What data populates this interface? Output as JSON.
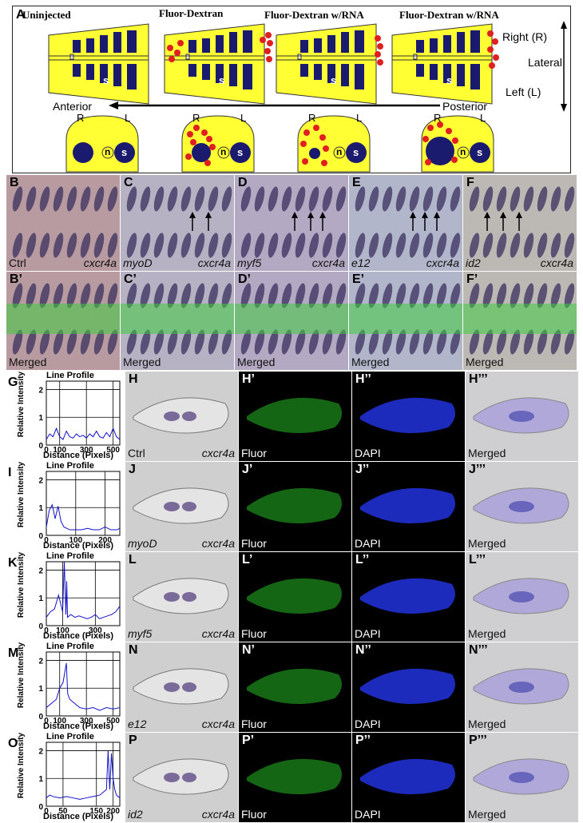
{
  "panel_a": {
    "letter": "A",
    "column_titles": [
      "Uninjected",
      "Fluor-Dextran",
      "Fluor-Dextran w/RNA",
      "Fluor-Dextran w/RNA"
    ],
    "right_label": "Right (R)",
    "lateral_label": "Lateral",
    "left_label": "Left (L)",
    "anterior_label": "Anterior",
    "posterior_label": "Posterior",
    "somite_letter": "s",
    "notochord_letter": "n",
    "r_letter": "R",
    "l_letter": "L",
    "colors": {
      "embryo": "#ffff33",
      "somite": "#1a1a6e",
      "dextran": "#e02020"
    }
  },
  "whole_mount": {
    "top_row": [
      {
        "letter": "B",
        "left": "Ctrl",
        "right": "cxcr4a"
      },
      {
        "letter": "C",
        "left": "myoD",
        "right": "cxcr4a"
      },
      {
        "letter": "D",
        "left": "myf5",
        "right": "cxcr4a"
      },
      {
        "letter": "E",
        "left": "e12",
        "right": "cxcr4a"
      },
      {
        "letter": "F",
        "left": "id2",
        "right": "cxcr4a"
      }
    ],
    "bottom_row": [
      {
        "letter": "B’",
        "left": "Merged"
      },
      {
        "letter": "C’",
        "left": "Merged"
      },
      {
        "letter": "D’",
        "left": "Merged"
      },
      {
        "letter": "E’",
        "left": "Merged"
      },
      {
        "letter": "F’",
        "left": "Merged"
      }
    ]
  },
  "sections": [
    {
      "chart_letter": "G",
      "tiles": [
        {
          "letter": "H",
          "left": "Ctrl",
          "right": "cxcr4a"
        },
        {
          "letter": "H’",
          "left": "Fluor"
        },
        {
          "letter": "H’’",
          "left": "DAPI"
        },
        {
          "letter": "H’’’",
          "left": "Merged"
        }
      ]
    },
    {
      "chart_letter": "I",
      "tiles": [
        {
          "letter": "J",
          "left": "myoD",
          "right": "cxcr4a"
        },
        {
          "letter": "J’",
          "left": "Fluor"
        },
        {
          "letter": "J’’",
          "left": "DAPI"
        },
        {
          "letter": "J’’’",
          "left": "Merged"
        }
      ]
    },
    {
      "chart_letter": "K",
      "tiles": [
        {
          "letter": "L",
          "left": "myf5",
          "right": "cxcr4a"
        },
        {
          "letter": "L’",
          "left": "Fluor"
        },
        {
          "letter": "L’’",
          "left": "DAPI"
        },
        {
          "letter": "L’’’",
          "left": "Merged"
        }
      ]
    },
    {
      "chart_letter": "M",
      "tiles": [
        {
          "letter": "N",
          "left": "e12",
          "right": "cxcr4a"
        },
        {
          "letter": "N’",
          "left": "Fluor"
        },
        {
          "letter": "N’’",
          "left": "DAPI"
        },
        {
          "letter": "N’’’",
          "left": "Merged"
        }
      ]
    },
    {
      "chart_letter": "O",
      "tiles": [
        {
          "letter": "P",
          "left": "id2",
          "right": "cxcr4a"
        },
        {
          "letter": "P’",
          "left": "Fluor"
        },
        {
          "letter": "P’’",
          "left": "DAPI"
        },
        {
          "letter": "P’’’",
          "left": "Merged"
        }
      ]
    }
  ],
  "chart_data": [
    {
      "type": "line",
      "title": "Line Profile",
      "xlabel": "Distance (Pixels)",
      "ylabel": "Relative Intensity",
      "xlim": [
        0,
        550
      ],
      "ylim": [
        0,
        2.3
      ],
      "xticks": [
        0,
        100,
        300,
        500
      ],
      "yticks": [
        0,
        1,
        2
      ],
      "x": [
        0,
        25,
        50,
        75,
        100,
        125,
        150,
        175,
        200,
        225,
        250,
        275,
        300,
        325,
        350,
        375,
        400,
        425,
        450,
        475,
        500,
        525,
        550
      ],
      "series": [
        {
          "values": [
            0.2,
            0.4,
            0.3,
            0.6,
            0.3,
            0.2,
            0.5,
            0.3,
            0.25,
            0.4,
            0.3,
            0.35,
            0.25,
            0.4,
            0.3,
            0.5,
            0.3,
            0.25,
            0.45,
            0.3,
            0.6,
            0.3,
            0.2
          ]
        }
      ],
      "color": "#1111cc"
    },
    {
      "type": "line",
      "title": "Line Profile",
      "xlabel": "Distance (Pixels)",
      "ylabel": "Relative Intensity",
      "xlim": [
        0,
        250
      ],
      "ylim": [
        0,
        2.3
      ],
      "xticks": [
        0,
        100,
        200
      ],
      "yticks": [
        0,
        1,
        2
      ],
      "x": [
        0,
        10,
        20,
        30,
        40,
        50,
        60,
        70,
        80,
        100,
        120,
        140,
        160,
        180,
        200,
        220,
        240,
        250
      ],
      "series": [
        {
          "values": [
            0.3,
            0.9,
            1.1,
            0.6,
            1.05,
            0.5,
            0.3,
            0.25,
            0.2,
            0.2,
            0.2,
            0.25,
            0.2,
            0.2,
            0.3,
            0.2,
            0.2,
            0.25
          ]
        }
      ],
      "color": "#1111cc"
    },
    {
      "type": "line",
      "title": "Line Profile",
      "xlabel": "Distance (Pixels)",
      "ylabel": "Relative Intensity",
      "xlim": [
        0,
        450
      ],
      "ylim": [
        0,
        2.3
      ],
      "xticks": [
        0,
        100,
        300
      ],
      "yticks": [
        0,
        1,
        2
      ],
      "x": [
        0,
        25,
        50,
        75,
        100,
        110,
        120,
        125,
        130,
        150,
        175,
        200,
        225,
        250,
        275,
        300,
        325,
        350,
        375,
        400,
        425,
        450
      ],
      "series": [
        {
          "values": [
            0.3,
            0.5,
            0.6,
            1.1,
            0.5,
            2.3,
            0.4,
            1.6,
            0.3,
            0.4,
            0.3,
            0.35,
            0.3,
            0.25,
            0.3,
            0.4,
            0.25,
            0.3,
            0.35,
            0.4,
            0.5,
            0.7
          ]
        }
      ],
      "color": "#1111cc"
    },
    {
      "type": "line",
      "title": "Line Profile",
      "xlabel": "Distance (Pixels)",
      "ylabel": "Relative Intensity",
      "xlim": [
        0,
        550
      ],
      "ylim": [
        0,
        2.3
      ],
      "xticks": [
        0,
        100,
        300,
        500
      ],
      "yticks": [
        0,
        1,
        2
      ],
      "x": [
        0,
        25,
        50,
        75,
        100,
        125,
        150,
        160,
        175,
        200,
        225,
        250,
        300,
        350,
        400,
        450,
        500,
        550
      ],
      "series": [
        {
          "values": [
            0.3,
            0.4,
            0.5,
            0.6,
            1.0,
            1.2,
            1.9,
            0.8,
            0.6,
            0.5,
            0.4,
            0.3,
            0.25,
            0.3,
            0.2,
            0.3,
            0.25,
            0.3
          ]
        }
      ],
      "color": "#1111cc"
    },
    {
      "type": "line",
      "title": "Line Profile",
      "xlabel": "Distance (Pixels)",
      "ylabel": "Relative Intensity",
      "xlim": [
        0,
        220
      ],
      "ylim": [
        0,
        2.3
      ],
      "xticks": [
        0,
        50,
        150,
        200
      ],
      "yticks": [
        0,
        1,
        2
      ],
      "x": [
        0,
        10,
        20,
        40,
        60,
        80,
        100,
        120,
        140,
        160,
        170,
        180,
        185,
        190,
        195,
        200,
        205,
        210,
        220
      ],
      "series": [
        {
          "values": [
            0.3,
            0.4,
            0.35,
            0.3,
            0.35,
            0.3,
            0.25,
            0.3,
            0.35,
            0.4,
            0.5,
            0.6,
            2.0,
            0.6,
            1.9,
            1.0,
            0.6,
            0.4,
            0.3
          ]
        }
      ],
      "color": "#1111cc"
    }
  ]
}
